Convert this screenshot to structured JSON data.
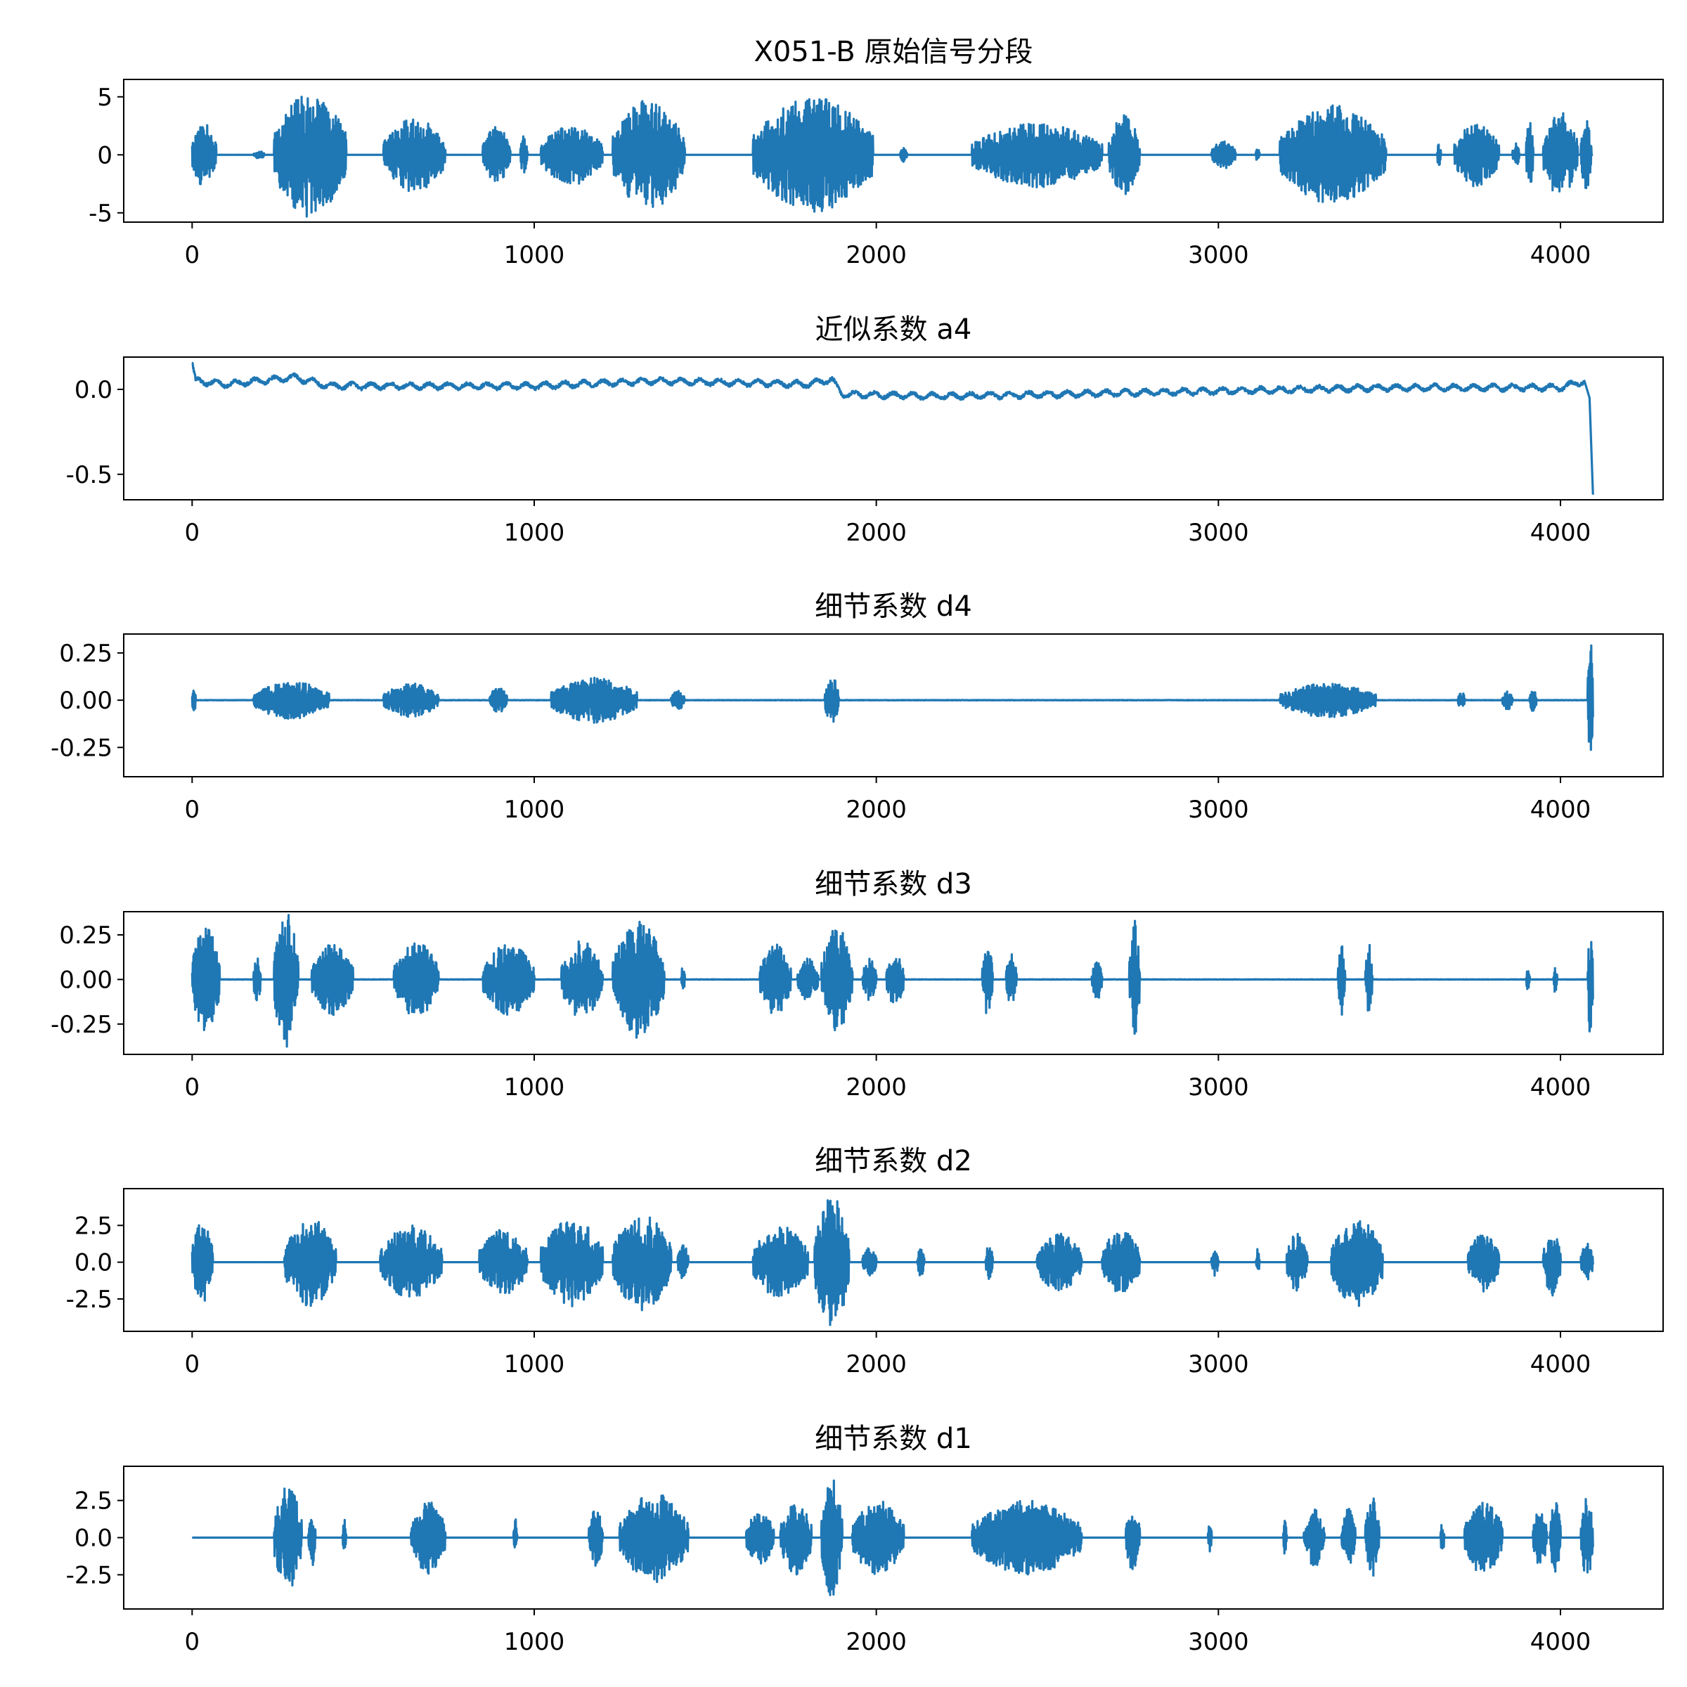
{
  "style": {
    "line_color": "#1f77b4",
    "background": "#ffffff"
  },
  "chart_data": [
    {
      "type": "line",
      "title": "X051-B 原始信号分段",
      "xlim": [
        -200,
        4300
      ],
      "ylim": [
        -5.8,
        6.5
      ],
      "xticks": [
        0,
        1000,
        2000,
        3000,
        4000
      ],
      "xtick_labels": [
        "0",
        "1000",
        "2000",
        "3000",
        "4000"
      ],
      "yticks": [
        5,
        0,
        -5
      ],
      "ytick_labels": [
        "5",
        "0",
        "-5"
      ],
      "series": [
        {
          "baseline": 0.0,
          "bursts": [
            [
              0,
              70,
              2.8
            ],
            [
              180,
              210,
              0.4
            ],
            [
              240,
              450,
              5.5
            ],
            [
              560,
              740,
              3.2
            ],
            [
              850,
              930,
              2.5
            ],
            [
              960,
              980,
              1.8
            ],
            [
              1020,
              1200,
              2.6
            ],
            [
              1230,
              1440,
              4.8
            ],
            [
              1640,
              1990,
              5.0
            ],
            [
              2070,
              2090,
              0.6
            ],
            [
              2280,
              2660,
              2.8
            ],
            [
              2680,
              2770,
              3.5
            ],
            [
              2980,
              3050,
              1.2
            ],
            [
              3110,
              3120,
              0.8
            ],
            [
              3180,
              3490,
              4.3
            ],
            [
              3640,
              3650,
              1.2
            ],
            [
              3690,
              3820,
              2.8
            ],
            [
              3860,
              3880,
              1.0
            ],
            [
              3900,
              3920,
              3.5
            ],
            [
              3950,
              4050,
              3.7
            ],
            [
              4060,
              4090,
              3.0
            ]
          ]
        }
      ]
    },
    {
      "type": "line",
      "title": "近似系数 a4",
      "xlim": [
        -200,
        4300
      ],
      "ylim": [
        -0.65,
        0.19
      ],
      "xticks": [
        0,
        1000,
        2000,
        3000,
        4000
      ],
      "xtick_labels": [
        "0",
        "1000",
        "2000",
        "3000",
        "4000"
      ],
      "yticks": [
        0.0,
        -0.5
      ],
      "ytick_labels": [
        "0.0",
        "-0.5"
      ],
      "series": [
        {
          "trend": [
            [
              0,
              0.16
            ],
            [
              10,
              0.05
            ],
            [
              100,
              0.03
            ],
            [
              300,
              0.07
            ],
            [
              400,
              0.02
            ],
            [
              1000,
              0.02
            ],
            [
              1350,
              0.05
            ],
            [
              1800,
              0.03
            ],
            [
              1870,
              0.06
            ],
            [
              1900,
              -0.03
            ],
            [
              2200,
              -0.04
            ],
            [
              2500,
              -0.03
            ],
            [
              3000,
              -0.01
            ],
            [
              3500,
              0.01
            ],
            [
              4000,
              0.01
            ],
            [
              4070,
              0.05
            ],
            [
              4085,
              -0.05
            ],
            [
              4095,
              -0.62
            ]
          ],
          "ripple": 0.015
        }
      ]
    },
    {
      "type": "line",
      "title": "细节系数 d4",
      "xlim": [
        -200,
        4300
      ],
      "ylim": [
        -0.405,
        0.35
      ],
      "xticks": [
        0,
        1000,
        2000,
        3000,
        4000
      ],
      "xtick_labels": [
        "0",
        "1000",
        "2000",
        "3000",
        "4000"
      ],
      "yticks": [
        0.25,
        0.0,
        -0.25
      ],
      "ytick_labels": [
        "0.25",
        "0.00",
        "-0.25"
      ],
      "series": [
        {
          "baseline": 0.0,
          "bursts": [
            [
              0,
              10,
              0.08
            ],
            [
              180,
              400,
              0.1
            ],
            [
              560,
              720,
              0.09
            ],
            [
              870,
              920,
              0.07
            ],
            [
              1050,
              1300,
              0.12
            ],
            [
              1400,
              1440,
              0.05
            ],
            [
              1850,
              1890,
              0.13
            ],
            [
              3180,
              3460,
              0.09
            ],
            [
              3700,
              3720,
              0.05
            ],
            [
              3830,
              3860,
              0.05
            ],
            [
              3910,
              3930,
              0.06
            ],
            [
              4080,
              4095,
              0.34
            ]
          ]
        }
      ]
    },
    {
      "type": "line",
      "title": "细节系数 d3",
      "xlim": [
        -200,
        4300
      ],
      "ylim": [
        -0.42,
        0.38
      ],
      "xticks": [
        0,
        1000,
        2000,
        3000,
        4000
      ],
      "xtick_labels": [
        "0",
        "1000",
        "2000",
        "3000",
        "4000"
      ],
      "yticks": [
        0.25,
        0.0,
        -0.25
      ],
      "ytick_labels": [
        "0.25",
        "0.00",
        "-0.25"
      ],
      "series": [
        {
          "baseline": 0.0,
          "bursts": [
            [
              0,
              80,
              0.3
            ],
            [
              180,
              200,
              0.15
            ],
            [
              240,
              310,
              0.38
            ],
            [
              350,
              470,
              0.2
            ],
            [
              590,
              720,
              0.22
            ],
            [
              850,
              1000,
              0.2
            ],
            [
              1080,
              1200,
              0.22
            ],
            [
              1230,
              1380,
              0.33
            ],
            [
              1430,
              1440,
              0.1
            ],
            [
              1660,
              1750,
              0.2
            ],
            [
              1770,
              1830,
              0.12
            ],
            [
              1840,
              1930,
              0.3
            ],
            [
              1960,
              2000,
              0.12
            ],
            [
              2030,
              2080,
              0.15
            ],
            [
              2310,
              2340,
              0.2
            ],
            [
              2380,
              2410,
              0.15
            ],
            [
              2630,
              2660,
              0.12
            ],
            [
              2740,
              2770,
              0.33
            ],
            [
              3350,
              3370,
              0.2
            ],
            [
              3430,
              3450,
              0.2
            ],
            [
              3900,
              3910,
              0.07
            ],
            [
              3980,
              3990,
              0.08
            ],
            [
              4080,
              4095,
              0.33
            ]
          ]
        }
      ]
    },
    {
      "type": "line",
      "title": "细节系数 d2",
      "xlim": [
        -200,
        4300
      ],
      "ylim": [
        -4.7,
        5.0
      ],
      "xticks": [
        0,
        1000,
        2000,
        3000,
        4000
      ],
      "xtick_labels": [
        "0",
        "1000",
        "2000",
        "3000",
        "4000"
      ],
      "yticks": [
        2.5,
        0.0,
        -2.5
      ],
      "ytick_labels": [
        "2.5",
        "0.0",
        "-2.5"
      ],
      "series": [
        {
          "baseline": 0.0,
          "bursts": [
            [
              0,
              60,
              2.8
            ],
            [
              270,
              420,
              3.0
            ],
            [
              550,
              730,
              2.5
            ],
            [
              840,
              980,
              2.3
            ],
            [
              1020,
              1200,
              3.0
            ],
            [
              1230,
              1400,
              3.3
            ],
            [
              1420,
              1450,
              1.3
            ],
            [
              1640,
              1800,
              2.5
            ],
            [
              1820,
              1920,
              4.5
            ],
            [
              1960,
              2000,
              1.0
            ],
            [
              2120,
              2140,
              1.0
            ],
            [
              2320,
              2340,
              1.3
            ],
            [
              2470,
              2600,
              2.0
            ],
            [
              2660,
              2770,
              2.2
            ],
            [
              2980,
              3000,
              1.0
            ],
            [
              3110,
              3120,
              1.0
            ],
            [
              3200,
              3260,
              2.0
            ],
            [
              3330,
              3480,
              3.0
            ],
            [
              3730,
              3820,
              2.0
            ],
            [
              3950,
              4000,
              2.3
            ],
            [
              4060,
              4095,
              1.3
            ]
          ]
        }
      ]
    },
    {
      "type": "line",
      "title": "细节系数 d1",
      "xlim": [
        -200,
        4300
      ],
      "ylim": [
        -4.8,
        4.8
      ],
      "xticks": [
        0,
        1000,
        2000,
        3000,
        4000
      ],
      "xtick_labels": [
        "0",
        "1000",
        "2000",
        "3000",
        "4000"
      ],
      "yticks": [
        2.5,
        0.0,
        -2.5
      ],
      "ytick_labels": [
        "2.5",
        "0.0",
        "-2.5"
      ],
      "series": [
        {
          "baseline": 0.0,
          "bursts": [
            [
              240,
              320,
              3.5
            ],
            [
              340,
              360,
              2.0
            ],
            [
              440,
              450,
              1.5
            ],
            [
              640,
              740,
              2.5
            ],
            [
              940,
              950,
              1.3
            ],
            [
              1160,
              1200,
              2.0
            ],
            [
              1250,
              1450,
              3.0
            ],
            [
              1620,
              1700,
              1.8
            ],
            [
              1720,
              1810,
              2.5
            ],
            [
              1840,
              1900,
              4.0
            ],
            [
              1930,
              2080,
              2.5
            ],
            [
              2280,
              2600,
              2.5
            ],
            [
              2730,
              2770,
              2.3
            ],
            [
              2970,
              2980,
              1.3
            ],
            [
              3190,
              3200,
              1.3
            ],
            [
              3250,
              3310,
              2.0
            ],
            [
              3360,
              3400,
              2.0
            ],
            [
              3430,
              3470,
              2.8
            ],
            [
              3650,
              3660,
              1.3
            ],
            [
              3720,
              3830,
              2.5
            ],
            [
              3920,
              3960,
              2.0
            ],
            [
              3970,
              4000,
              2.8
            ],
            [
              4060,
              4095,
              2.8
            ]
          ]
        }
      ]
    }
  ]
}
